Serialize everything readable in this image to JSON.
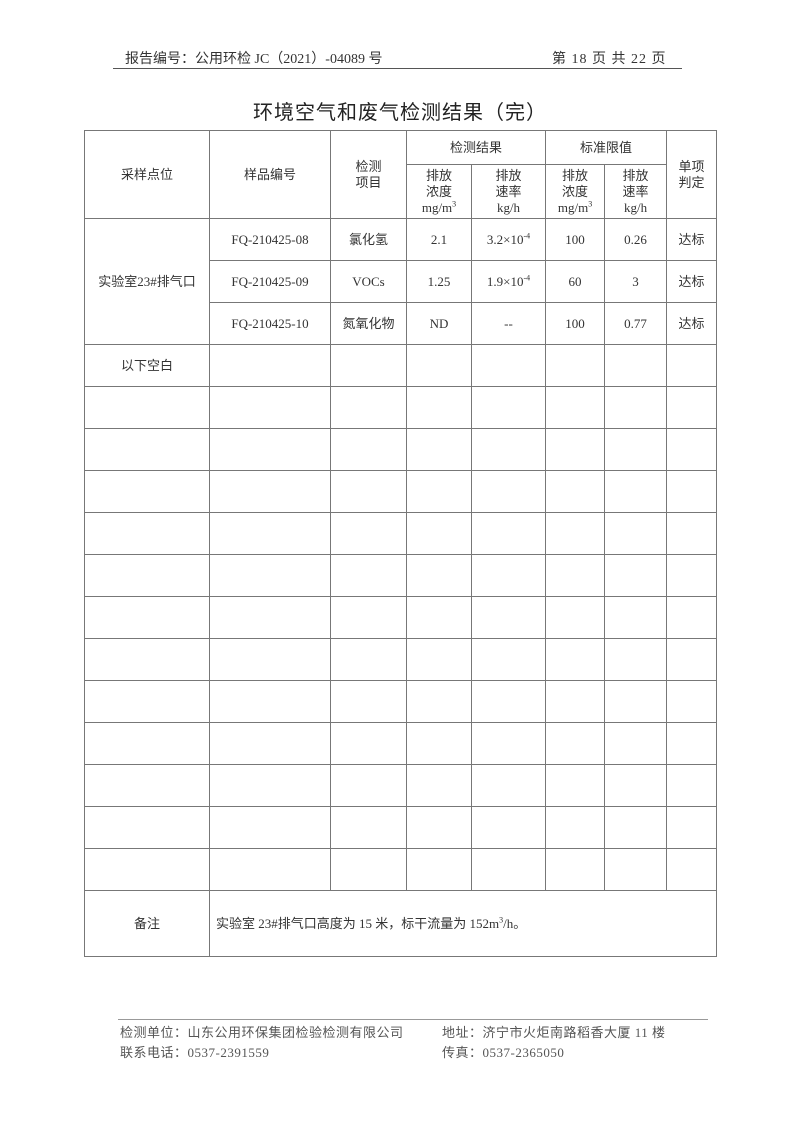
{
  "header": {
    "report_no": "报告编号：公用环检 JC（2021）-04089 号",
    "page": "第 18 页 共 22 页"
  },
  "title": "环境空气和废气检测结果（完）",
  "table": {
    "headers": {
      "site": "采样点位",
      "sample_id": "样品编号",
      "item": "检测\n项目",
      "result_group": "检测结果",
      "limit_group": "标准限值",
      "judgement": "单项\n判定",
      "conc": "排放\n浓度",
      "conc_unit": "mg/m",
      "rate": "排放\n速率",
      "rate_unit": "kg/h",
      "unit_sup": "3"
    },
    "site": "实验室23#排气口",
    "rows": [
      {
        "sample_id": "FQ-210425-08",
        "item": "氯化氢",
        "conc": "2.1",
        "rate": "3.2×10",
        "rate_exp": "-4",
        "limit_conc": "100",
        "limit_rate": "0.26",
        "judgement": "达标"
      },
      {
        "sample_id": "FQ-210425-09",
        "item": "VOCs",
        "conc": "1.25",
        "rate": "1.9×10",
        "rate_exp": "-4",
        "limit_conc": "60",
        "limit_rate": "3",
        "judgement": "达标"
      },
      {
        "sample_id": "FQ-210425-10",
        "item": "氮氧化物",
        "conc": "ND",
        "rate": "--",
        "rate_exp": "",
        "limit_conc": "100",
        "limit_rate": "0.77",
        "judgement": "达标"
      }
    ],
    "blank_note": "以下空白",
    "blank_rows": 12,
    "remarks_label": "备注",
    "remarks": "实验室 23#排气口高度为 15 米，标干流量为 152m",
    "remarks_sup": "3",
    "remarks_tail": "/h。"
  },
  "footer": {
    "unit": "检测单位：山东公用环保集团检验检测有限公司",
    "address": "地址：济宁市火炬南路稻香大厦 11 楼",
    "phone": "联系电话：0537-2391559",
    "fax": "传真：0537-2365050"
  }
}
